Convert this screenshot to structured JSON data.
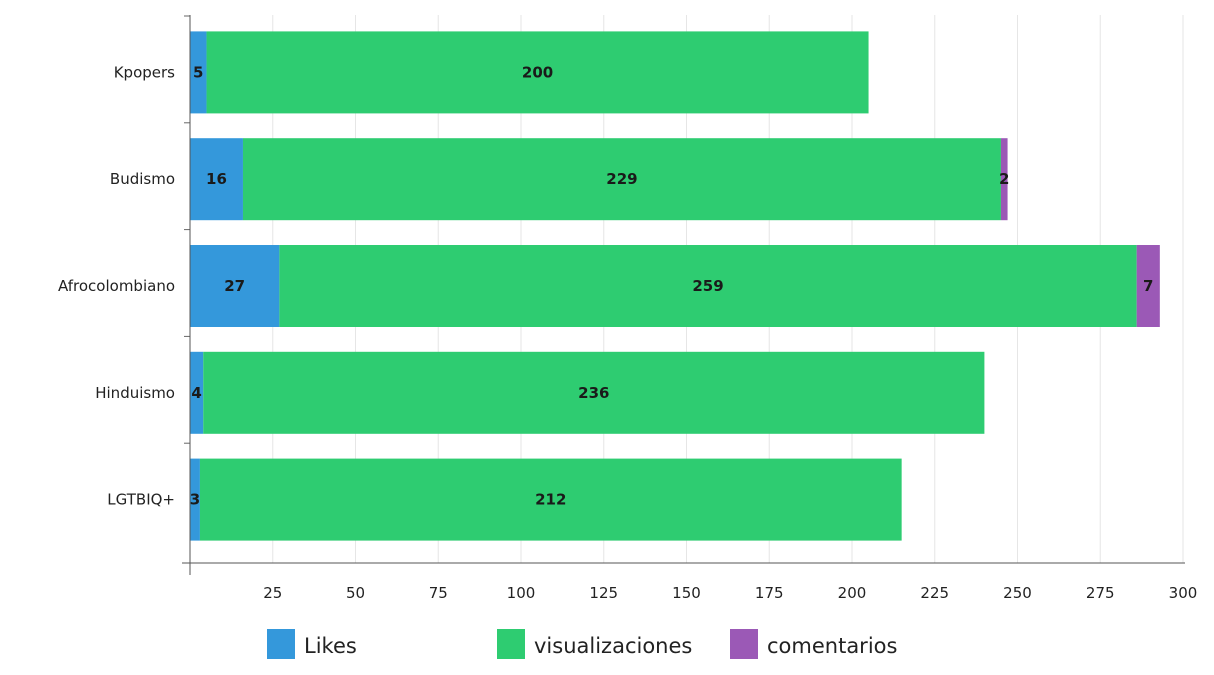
{
  "chart_data": {
    "type": "bar",
    "orientation": "horizontal",
    "stacked": true,
    "categories": [
      "Kpopers",
      "Budismo",
      "Afrocolombiano",
      "Hinduismo",
      "LGTBIQ+"
    ],
    "series": [
      {
        "name": "Likes",
        "color": "#3498db",
        "values": [
          5,
          16,
          27,
          4,
          3
        ]
      },
      {
        "name": "visualizaciones",
        "color": "#2ecc71",
        "values": [
          200,
          229,
          259,
          236,
          212
        ]
      },
      {
        "name": "comentarios",
        "color": "#9b59b6",
        "values": [
          0,
          2,
          7,
          0,
          0
        ]
      }
    ],
    "xlim": [
      0,
      300
    ],
    "xticks": [
      25,
      50,
      75,
      100,
      125,
      150,
      175,
      200,
      225,
      250,
      275,
      300
    ],
    "grid": true,
    "legend_position": "bottom",
    "data_labels": true,
    "title": "",
    "xlabel": "",
    "ylabel": ""
  }
}
